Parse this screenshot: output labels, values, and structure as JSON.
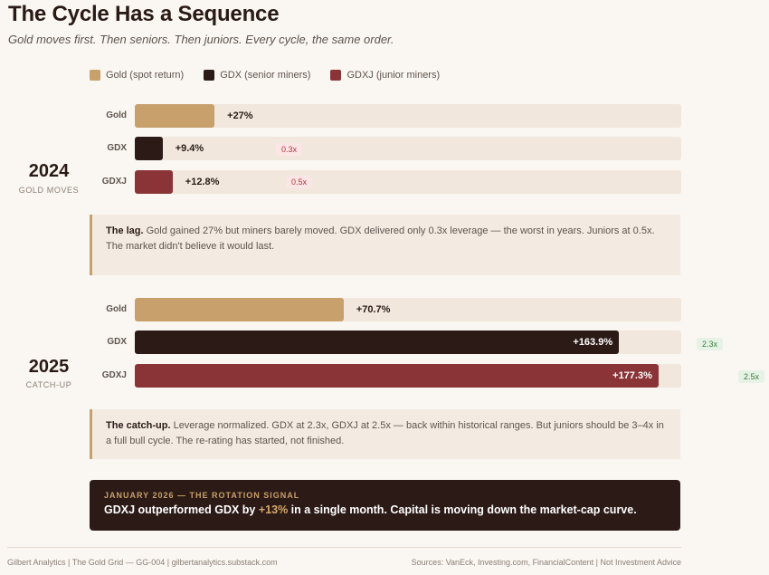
{
  "title": "The Cycle Has a Sequence",
  "subtitle": "Gold moves first. Then seniors. Then juniors. Every cycle, the same order.",
  "legend": [
    {
      "label": "Gold (spot return)",
      "color": "#c8a06b"
    },
    {
      "label": "GDX (senior miners)",
      "color": "#2b1a16"
    },
    {
      "label": "GDXJ (junior miners)",
      "color": "#8a3438"
    }
  ],
  "chart_data": {
    "type": "bar",
    "orientation": "horizontal",
    "xlim": [
      0,
      185
    ],
    "groups": [
      {
        "year": "2024",
        "sublabel": "GOLD MOVES",
        "rows": [
          {
            "name": "Gold",
            "value": 27,
            "label": "+27%",
            "color": "#c8a06b"
          },
          {
            "name": "GDX",
            "value": 9.4,
            "label": "+9.4%",
            "color": "#2b1a16",
            "leverage": "0.3x",
            "badge": "low"
          },
          {
            "name": "GDXJ",
            "value": 12.8,
            "label": "+12.8%",
            "color": "#8a3438",
            "leverage": "0.5x",
            "badge": "low"
          }
        ]
      },
      {
        "year": "2025",
        "sublabel": "CATCH-UP",
        "rows": [
          {
            "name": "Gold",
            "value": 70.7,
            "label": "+70.7%",
            "color": "#c8a06b"
          },
          {
            "name": "GDX",
            "value": 163.9,
            "label": "+163.9%",
            "color": "#2b1a16",
            "leverage": "2.3x",
            "badge": "high"
          },
          {
            "name": "GDXJ",
            "value": 177.3,
            "label": "+177.3%",
            "color": "#8a3438",
            "leverage": "2.5x",
            "badge": "high"
          }
        ]
      }
    ]
  },
  "notes": [
    {
      "lead": "The lag.",
      "text": " Gold gained 27% but miners barely moved. GDX delivered only 0.3x leverage — the worst in years. Juniors at 0.5x. The market didn't believe it would last."
    },
    {
      "lead": "The catch-up.",
      "text": " Leverage normalized. GDX at 2.3x, GDXJ at 2.5x — back within historical ranges. But juniors should be 3–4x in a full bull cycle. The re-rating has started, not finished."
    }
  ],
  "signal": {
    "kicker": "JANUARY 2026 — THE ROTATION SIGNAL",
    "text_before": "GDXJ outperformed GDX by ",
    "highlight": "+13%",
    "text_after": " in a single month. Capital is moving down the market-cap curve."
  },
  "footer": {
    "left": "Gilbert Analytics | The Gold Grid — GG-004 | gilbertanalytics.substack.com",
    "right": "Sources: VanEck, Investing.com, FinancialContent | Not Investment Advice"
  }
}
